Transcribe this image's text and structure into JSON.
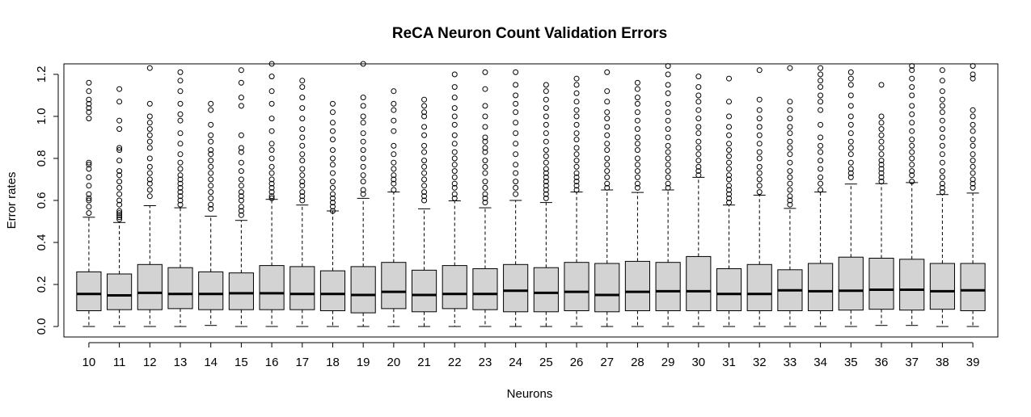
{
  "chart_data": {
    "type": "box",
    "title": "ReCA Neuron Count Validation Errors",
    "xlabel": "Neurons",
    "ylabel": "Error rates",
    "ylim": [
      -0.05,
      1.25
    ],
    "yticks": [
      "0.0",
      "0.2",
      "0.4",
      "0.6",
      "0.8",
      "1.0",
      "1.2"
    ],
    "box_fill": "#d3d3d3",
    "categories": [
      "10",
      "11",
      "12",
      "13",
      "14",
      "15",
      "16",
      "17",
      "18",
      "19",
      "20",
      "21",
      "22",
      "23",
      "24",
      "25",
      "26",
      "27",
      "28",
      "29",
      "30",
      "31",
      "32",
      "33",
      "34",
      "35",
      "36",
      "37",
      "38",
      "39"
    ],
    "boxes": [
      {
        "q1": 0.075,
        "median": 0.155,
        "q3": 0.26,
        "whisker_low": 0.0,
        "whisker_high": 0.52,
        "outliers": [
          0.54,
          0.57,
          0.6,
          0.61,
          0.63,
          0.67,
          0.71,
          0.75,
          0.77,
          0.78,
          0.99,
          1.02,
          1.04,
          1.06,
          1.08,
          1.12,
          1.16
        ]
      },
      {
        "q1": 0.08,
        "median": 0.148,
        "q3": 0.25,
        "whisker_low": 0.0,
        "whisker_high": 0.495,
        "outliers": [
          0.51,
          0.52,
          0.53,
          0.54,
          0.55,
          0.58,
          0.6,
          0.63,
          0.66,
          0.69,
          0.72,
          0.74,
          0.79,
          0.84,
          0.85,
          0.94,
          0.98,
          1.07,
          1.13
        ]
      },
      {
        "q1": 0.08,
        "median": 0.16,
        "q3": 0.295,
        "whisker_low": 0.0,
        "whisker_high": 0.575,
        "outliers": [
          0.62,
          0.65,
          0.68,
          0.7,
          0.73,
          0.76,
          0.8,
          0.85,
          0.88,
          0.91,
          0.94,
          0.97,
          1.0,
          1.06,
          1.23
        ]
      },
      {
        "q1": 0.085,
        "median": 0.155,
        "q3": 0.28,
        "whisker_low": 0.0,
        "whisker_high": 0.565,
        "outliers": [
          0.58,
          0.6,
          0.62,
          0.64,
          0.66,
          0.68,
          0.7,
          0.72,
          0.75,
          0.78,
          0.82,
          0.87,
          0.92,
          0.98,
          1.01,
          1.06,
          1.12,
          1.17,
          1.21
        ]
      },
      {
        "q1": 0.08,
        "median": 0.155,
        "q3": 0.26,
        "whisker_low": 0.005,
        "whisker_high": 0.525,
        "outliers": [
          0.56,
          0.58,
          0.61,
          0.64,
          0.67,
          0.7,
          0.73,
          0.76,
          0.79,
          0.82,
          0.84,
          0.88,
          0.91,
          0.96,
          1.03,
          1.06
        ]
      },
      {
        "q1": 0.08,
        "median": 0.158,
        "q3": 0.255,
        "whisker_low": 0.0,
        "whisker_high": 0.505,
        "outliers": [
          0.53,
          0.55,
          0.57,
          0.6,
          0.62,
          0.64,
          0.67,
          0.7,
          0.74,
          0.78,
          0.83,
          0.85,
          0.91,
          1.05,
          1.09,
          1.16,
          1.22
        ]
      },
      {
        "q1": 0.08,
        "median": 0.158,
        "q3": 0.29,
        "whisker_low": 0.0,
        "whisker_high": 0.605,
        "outliers": [
          0.61,
          0.62,
          0.64,
          0.66,
          0.68,
          0.7,
          0.73,
          0.76,
          0.8,
          0.84,
          0.87,
          0.93,
          0.99,
          1.06,
          1.12,
          1.19,
          1.25
        ]
      },
      {
        "q1": 0.08,
        "median": 0.155,
        "q3": 0.285,
        "whisker_low": 0.0,
        "whisker_high": 0.578,
        "outliers": [
          0.6,
          0.62,
          0.64,
          0.67,
          0.69,
          0.72,
          0.75,
          0.79,
          0.82,
          0.86,
          0.9,
          0.94,
          0.99,
          1.04,
          1.09,
          1.14,
          1.17
        ]
      },
      {
        "q1": 0.075,
        "median": 0.155,
        "q3": 0.265,
        "whisker_low": 0.0,
        "whisker_high": 0.55,
        "outliers": [
          0.55,
          0.57,
          0.59,
          0.61,
          0.63,
          0.66,
          0.69,
          0.73,
          0.77,
          0.8,
          0.84,
          0.89,
          0.93,
          0.97,
          1.02,
          1.06
        ]
      },
      {
        "q1": 0.065,
        "median": 0.15,
        "q3": 0.285,
        "whisker_low": 0.0,
        "whisker_high": 0.61,
        "outliers": [
          0.63,
          0.65,
          0.69,
          0.72,
          0.76,
          0.8,
          0.84,
          0.88,
          0.92,
          0.97,
          1.0,
          1.05,
          1.09,
          1.25
        ]
      },
      {
        "q1": 0.085,
        "median": 0.165,
        "q3": 0.305,
        "whisker_low": 0.0,
        "whisker_high": 0.64,
        "outliers": [
          0.65,
          0.68,
          0.7,
          0.72,
          0.75,
          0.78,
          0.82,
          0.86,
          0.93,
          0.98,
          1.03,
          1.06,
          1.12
        ]
      },
      {
        "q1": 0.07,
        "median": 0.15,
        "q3": 0.268,
        "whisker_low": 0.0,
        "whisker_high": 0.56,
        "outliers": [
          0.6,
          0.62,
          0.64,
          0.67,
          0.7,
          0.73,
          0.76,
          0.79,
          0.83,
          0.86,
          0.91,
          0.95,
          1.0,
          1.02,
          1.05,
          1.08
        ]
      },
      {
        "q1": 0.085,
        "median": 0.155,
        "q3": 0.29,
        "whisker_low": 0.0,
        "whisker_high": 0.598,
        "outliers": [
          0.61,
          0.63,
          0.66,
          0.68,
          0.71,
          0.74,
          0.77,
          0.8,
          0.83,
          0.87,
          0.91,
          0.96,
          1.0,
          1.04,
          1.09,
          1.14,
          1.2
        ]
      },
      {
        "q1": 0.08,
        "median": 0.155,
        "q3": 0.275,
        "whisker_low": 0.0,
        "whisker_high": 0.565,
        "outliers": [
          0.59,
          0.61,
          0.63,
          0.66,
          0.69,
          0.73,
          0.76,
          0.79,
          0.83,
          0.85,
          0.88,
          0.9,
          0.95,
          1.0,
          1.05,
          1.13,
          1.21
        ]
      },
      {
        "q1": 0.07,
        "median": 0.17,
        "q3": 0.295,
        "whisker_low": 0.0,
        "whisker_high": 0.6,
        "outliers": [
          0.63,
          0.66,
          0.69,
          0.73,
          0.77,
          0.82,
          0.87,
          0.92,
          0.97,
          1.02,
          1.06,
          1.1,
          1.15,
          1.21
        ]
      },
      {
        "q1": 0.07,
        "median": 0.16,
        "q3": 0.28,
        "whisker_low": 0.0,
        "whisker_high": 0.59,
        "outliers": [
          0.61,
          0.63,
          0.65,
          0.67,
          0.69,
          0.71,
          0.73,
          0.75,
          0.78,
          0.81,
          0.84,
          0.88,
          0.92,
          0.96,
          1.0,
          1.04,
          1.08,
          1.12,
          1.15
        ]
      },
      {
        "q1": 0.075,
        "median": 0.165,
        "q3": 0.305,
        "whisker_low": 0.0,
        "whisker_high": 0.64,
        "outliers": [
          0.65,
          0.67,
          0.69,
          0.71,
          0.73,
          0.76,
          0.79,
          0.82,
          0.85,
          0.89,
          0.92,
          0.96,
          1.0,
          1.03,
          1.07,
          1.11,
          1.15,
          1.18
        ]
      },
      {
        "q1": 0.07,
        "median": 0.15,
        "q3": 0.3,
        "whisker_low": 0.0,
        "whisker_high": 0.65,
        "outliers": [
          0.66,
          0.68,
          0.71,
          0.74,
          0.77,
          0.8,
          0.84,
          0.87,
          0.91,
          0.95,
          0.99,
          1.02,
          1.07,
          1.12,
          1.21
        ]
      },
      {
        "q1": 0.075,
        "median": 0.165,
        "q3": 0.31,
        "whisker_low": 0.0,
        "whisker_high": 0.638,
        "outliers": [
          0.66,
          0.68,
          0.71,
          0.74,
          0.77,
          0.8,
          0.84,
          0.87,
          0.9,
          0.94,
          0.98,
          1.02,
          1.06,
          1.09,
          1.13,
          1.16
        ]
      },
      {
        "q1": 0.075,
        "median": 0.168,
        "q3": 0.305,
        "whisker_low": 0.0,
        "whisker_high": 0.65,
        "outliers": [
          0.66,
          0.68,
          0.71,
          0.74,
          0.77,
          0.8,
          0.83,
          0.86,
          0.9,
          0.94,
          0.98,
          1.02,
          1.06,
          1.11,
          1.15,
          1.2,
          1.24
        ]
      },
      {
        "q1": 0.075,
        "median": 0.168,
        "q3": 0.333,
        "whisker_low": 0.0,
        "whisker_high": 0.71,
        "outliers": [
          0.72,
          0.74,
          0.76,
          0.79,
          0.82,
          0.85,
          0.88,
          0.92,
          0.95,
          0.99,
          1.03,
          1.07,
          1.1,
          1.14,
          1.19
        ]
      },
      {
        "q1": 0.075,
        "median": 0.155,
        "q3": 0.275,
        "whisker_low": 0.0,
        "whisker_high": 0.578,
        "outliers": [
          0.59,
          0.61,
          0.63,
          0.65,
          0.67,
          0.7,
          0.72,
          0.75,
          0.78,
          0.81,
          0.84,
          0.87,
          0.91,
          0.95,
          1.0,
          1.07,
          1.18
        ]
      },
      {
        "q1": 0.075,
        "median": 0.155,
        "q3": 0.295,
        "whisker_low": 0.0,
        "whisker_high": 0.625,
        "outliers": [
          0.64,
          0.67,
          0.7,
          0.73,
          0.76,
          0.8,
          0.83,
          0.87,
          0.91,
          0.95,
          0.99,
          1.03,
          1.08,
          1.22
        ]
      },
      {
        "q1": 0.075,
        "median": 0.172,
        "q3": 0.27,
        "whisker_low": 0.0,
        "whisker_high": 0.562,
        "outliers": [
          0.58,
          0.6,
          0.62,
          0.65,
          0.68,
          0.71,
          0.74,
          0.78,
          0.82,
          0.85,
          0.88,
          0.92,
          0.95,
          0.99,
          1.03,
          1.07,
          1.23
        ]
      },
      {
        "q1": 0.075,
        "median": 0.168,
        "q3": 0.3,
        "whisker_low": 0.0,
        "whisker_high": 0.64,
        "outliers": [
          0.65,
          0.68,
          0.71,
          0.75,
          0.79,
          0.83,
          0.86,
          0.9,
          0.96,
          1.03,
          1.07,
          1.1,
          1.14,
          1.17,
          1.2,
          1.23
        ]
      },
      {
        "q1": 0.078,
        "median": 0.17,
        "q3": 0.33,
        "whisker_low": 0.0,
        "whisker_high": 0.678,
        "outliers": [
          0.71,
          0.73,
          0.75,
          0.78,
          0.82,
          0.85,
          0.88,
          0.92,
          0.96,
          1.0,
          1.05,
          1.1,
          1.15,
          1.18,
          1.21
        ]
      },
      {
        "q1": 0.082,
        "median": 0.175,
        "q3": 0.325,
        "whisker_low": 0.005,
        "whisker_high": 0.68,
        "outliers": [
          0.69,
          0.71,
          0.73,
          0.75,
          0.77,
          0.79,
          0.82,
          0.85,
          0.88,
          0.91,
          0.94,
          0.97,
          1.0,
          1.15
        ]
      },
      {
        "q1": 0.078,
        "median": 0.175,
        "q3": 0.32,
        "whisker_low": 0.005,
        "whisker_high": 0.685,
        "outliers": [
          0.69,
          0.72,
          0.74,
          0.77,
          0.8,
          0.83,
          0.86,
          0.89,
          0.93,
          0.97,
          1.01,
          1.05,
          1.1,
          1.14,
          1.18,
          1.22,
          1.24
        ]
      },
      {
        "q1": 0.082,
        "median": 0.168,
        "q3": 0.3,
        "whisker_low": 0.0,
        "whisker_high": 0.628,
        "outliers": [
          0.64,
          0.66,
          0.68,
          0.71,
          0.74,
          0.78,
          0.82,
          0.86,
          0.9,
          0.94,
          0.98,
          1.02,
          1.05,
          1.08,
          1.12,
          1.17,
          1.22
        ]
      },
      {
        "q1": 0.075,
        "median": 0.172,
        "q3": 0.3,
        "whisker_low": 0.0,
        "whisker_high": 0.635,
        "outliers": [
          0.66,
          0.68,
          0.7,
          0.73,
          0.76,
          0.79,
          0.82,
          0.86,
          0.89,
          0.93,
          0.96,
          1.0,
          1.03,
          1.18,
          1.2,
          1.24
        ]
      }
    ]
  }
}
